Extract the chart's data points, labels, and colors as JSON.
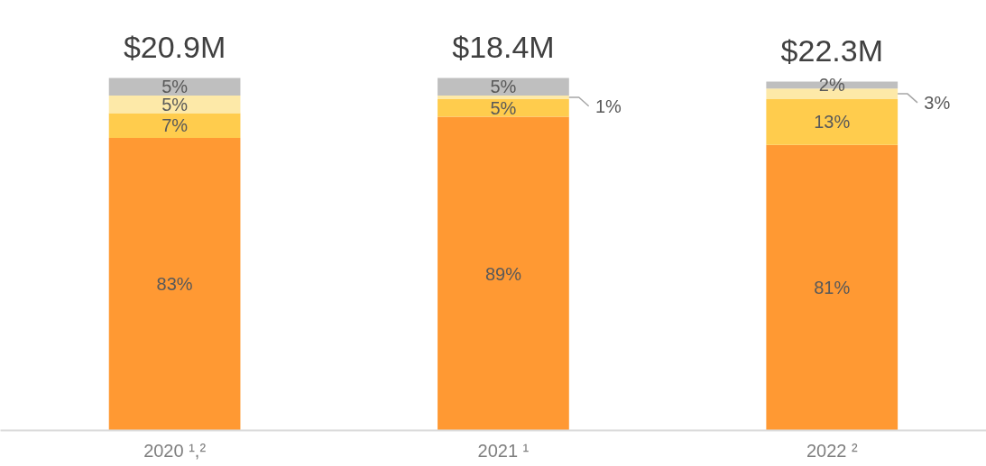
{
  "chart_data": {
    "type": "bar",
    "stacked": true,
    "categories": [
      "2020 ¹,²",
      "2021 ¹",
      "2022 ²"
    ],
    "series": [
      {
        "color": "#ff9933",
        "values": [
          83,
          89,
          81
        ],
        "value_labels": [
          "83%",
          "89%",
          "81%"
        ]
      },
      {
        "color": "#ffcc4d",
        "values": [
          7,
          5,
          13
        ],
        "value_labels": [
          "7%",
          "5%",
          "13%"
        ]
      },
      {
        "color": "#fde9a8",
        "values": [
          5,
          1,
          3
        ],
        "value_labels": [
          "5%",
          "1%",
          "3%"
        ]
      },
      {
        "color": "#bfbfbf",
        "values": [
          5,
          5,
          2
        ],
        "value_labels": [
          "5%",
          "5%",
          "2%"
        ]
      }
    ],
    "annotations": [
      {
        "text": "$20.9M",
        "x": "2020 ¹,²",
        "y": 100
      },
      {
        "text": "$18.4M",
        "x": "2021 ¹",
        "y": 100
      },
      {
        "text": "$22.3M",
        "x": "2022 ²",
        "y": 99
      }
    ],
    "grid": false
  }
}
